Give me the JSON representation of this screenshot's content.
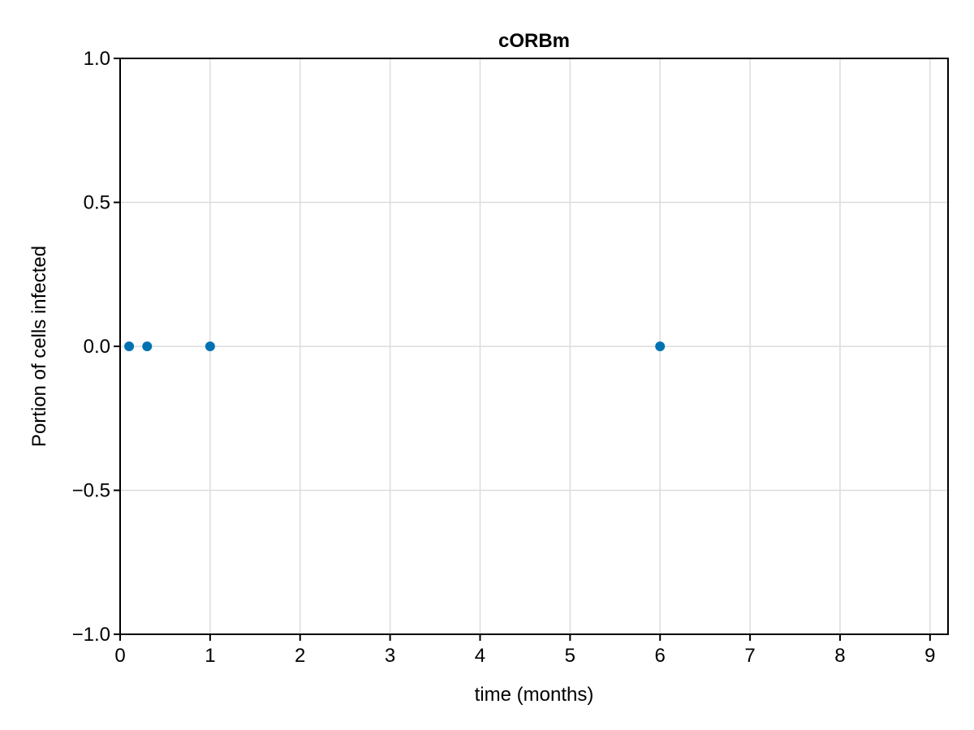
{
  "chart_data": {
    "type": "scatter",
    "title": "cORBm",
    "xlabel": "time (months)",
    "ylabel": "Portion of cells infected",
    "xlim": [
      0,
      9.2
    ],
    "ylim": [
      -1.0,
      1.0
    ],
    "xticks": [
      0,
      1,
      2,
      3,
      4,
      5,
      6,
      7,
      8,
      9
    ],
    "xtick_labels": [
      "0",
      "1",
      "2",
      "3",
      "4",
      "5",
      "6",
      "7",
      "8",
      "9"
    ],
    "yticks": [
      -1.0,
      -0.5,
      0.0,
      0.5,
      1.0
    ],
    "ytick_labels": [
      "−1.0",
      "−0.5",
      "0.0",
      "0.5",
      "1.0"
    ],
    "grid": true,
    "series": [
      {
        "color": "#0072b2",
        "x": [
          0.1,
          0.3,
          1,
          6
        ],
        "y": [
          0.0,
          0.0,
          0.0,
          0.0
        ]
      }
    ]
  }
}
